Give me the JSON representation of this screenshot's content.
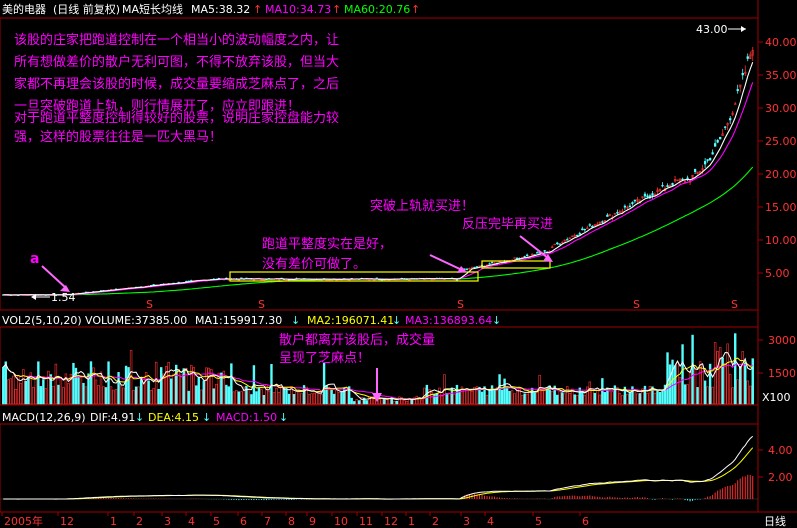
{
  "price_header": {
    "stock_name": "美的电器",
    "mode": "(日线 前复权)",
    "ma_caption": "MA短长均线",
    "ma5": "MA5:38.32",
    "ma10": "MA10:34.73",
    "ma60": "MA60:20.76",
    "arrow_up": "↑"
  },
  "volume_header": {
    "caption": "VOL2(5,10,20)",
    "volume": "VOLUME:37385.00",
    "ma1": "MA1:159917.30",
    "ma2": "MA2:196071.41",
    "ma3": "MA3:136893.64",
    "arrow_down": "↓"
  },
  "macd_header": {
    "caption": "MACD(12,26,9)",
    "dif": "DIF:4.91",
    "dea": "DEA:4.15",
    "macd": "MACD:1.50",
    "arrow_down": "↓"
  },
  "price_axis_ticks": [
    "40.00",
    "35.00",
    "30.00",
    "25.00",
    "20.00",
    "15.00",
    "10.00",
    "5.00"
  ],
  "volume_axis_ticks": [
    "3000",
    "1500"
  ],
  "volume_unit": "X100",
  "macd_axis_ticks": [
    "4.00",
    "2.00"
  ],
  "time_axis": [
    "2005年",
    "12",
    "1",
    "2",
    "3",
    "4",
    "5",
    "6",
    "7",
    "8",
    "9",
    "10",
    "11",
    "12",
    "1",
    "2",
    "3",
    "4",
    "5",
    "6"
  ],
  "time_axis_period": "日线",
  "markers": {
    "high_label": "43.00",
    "low_label": "1.54",
    "point_a": "a",
    "event_symbol": "S"
  },
  "annotations": {
    "main_text": [
      "该股的庄家把跑道控制在一个相当小的波动幅度之内，让",
      "所有想做差价的散户无利可图，不得不放弃该股，但当大",
      "家都不再理会该股的时候，成交量要缩成芝麻点了，之后",
      "一旦突破跑道上轨，则行情展开了，应立即跟进！",
      "对于跑道平整度控制得较好的股票，说明庄家控盘能力较",
      "强，这样的股票往往是一匹大黑马！"
    ],
    "breakout": "突破上轨就买进！",
    "pullback": "反压完毕再买进",
    "runway": [
      "跑道平整度实在是好，",
      "没有差价可做了。"
    ],
    "volume_note": [
      "散户都离开该股后，成交量",
      "呈现了芝麻点！"
    ]
  },
  "colors": {
    "background": "#000000",
    "frame": "#a00000",
    "up": "#ff3232",
    "down": "#54ffff",
    "ma5": "#ffffff",
    "ma10": "#ff00ff",
    "ma60": "#00ff00",
    "runway": "#ffff00",
    "annotation_text": "#ff00ff",
    "axis_text": "#ff3232"
  }
}
